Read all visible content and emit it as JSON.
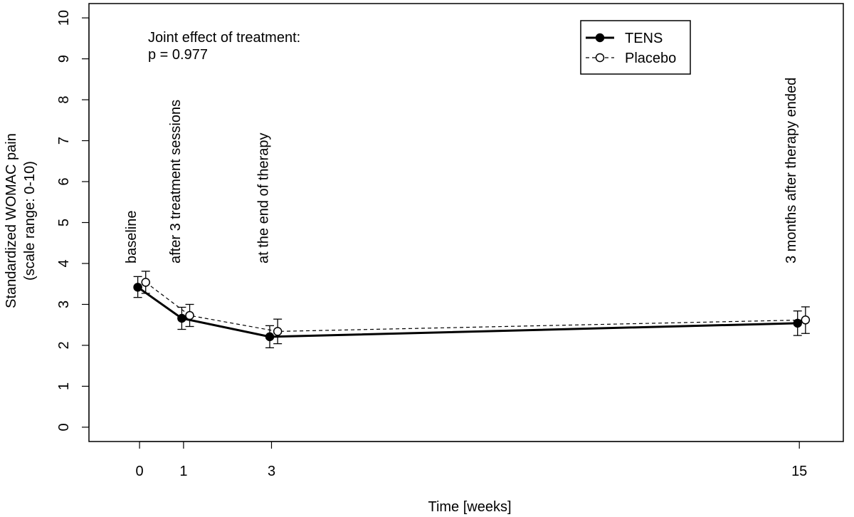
{
  "chart_data": {
    "type": "line",
    "title": "",
    "xlabel": "Time [weeks]",
    "ylabel_lines": [
      "Standardized WOMAC pain",
      "(scale range: 0-10)"
    ],
    "x": [
      0,
      1,
      3,
      15
    ],
    "xticks": [
      "0",
      "1",
      "3",
      "15"
    ],
    "xlim": [
      -1.15,
      16
    ],
    "ylim": [
      -0.35,
      10.35
    ],
    "yticks": [
      "0",
      "1",
      "2",
      "3",
      "4",
      "5",
      "6",
      "7",
      "8",
      "9",
      "10"
    ],
    "grid": false,
    "series": [
      {
        "name": "TENS",
        "style": "solid",
        "marker": "filled-circle",
        "color": "#000000",
        "values": [
          3.42,
          2.66,
          2.21,
          2.54
        ],
        "lower": [
          3.17,
          2.39,
          1.94,
          2.24
        ],
        "upper": [
          3.68,
          2.93,
          2.48,
          2.84
        ]
      },
      {
        "name": "Placebo",
        "style": "dashed",
        "marker": "open-circle",
        "color": "#000000",
        "values": [
          3.54,
          2.73,
          2.34,
          2.62
        ],
        "lower": [
          3.27,
          2.46,
          2.04,
          2.29
        ],
        "upper": [
          3.81,
          3.0,
          2.64,
          2.94
        ]
      }
    ],
    "timepoint_labels": [
      "baseline",
      "after 3 treatment sessions",
      "at the end of therapy",
      "3 months after therapy ended"
    ],
    "annotation": [
      "Joint effect of treatment:",
      "p = 0.977"
    ],
    "legend_position": "top-right"
  }
}
